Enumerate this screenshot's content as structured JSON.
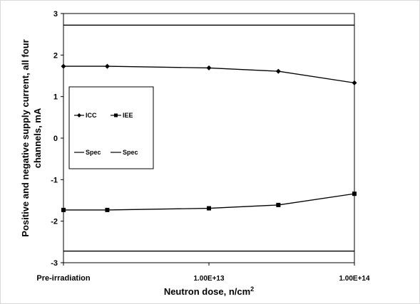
{
  "chart_data": {
    "type": "line",
    "title": "",
    "xlabel": "Neutron dose, n/cm",
    "xlabel_sup": "2",
    "ylabel_line1": "Positive and negative supply current, all four",
    "ylabel_line2": "channels, mA",
    "ylim": [
      -3,
      3
    ],
    "y_ticks": [
      "3",
      "2",
      "1",
      "0",
      "-1",
      "-2",
      "-3"
    ],
    "x_ticks": [
      "Pre-irradiation",
      "1.00E+13",
      "1.00E+14"
    ],
    "grid": false,
    "legend_position": "left-middle",
    "series": [
      {
        "name": "ICC",
        "marker": "diamond",
        "points": [
          [
            "Pre-irradiation",
            1.73
          ],
          [
            "2.00E+12",
            1.73
          ],
          [
            "1.00E+13",
            1.69
          ],
          [
            "3.00E+13",
            1.61
          ],
          [
            "1.00E+14",
            1.33
          ]
        ]
      },
      {
        "name": "IEE",
        "marker": "square",
        "points": [
          [
            "Pre-irradiation",
            -1.73
          ],
          [
            "2.00E+12",
            -1.73
          ],
          [
            "1.00E+13",
            -1.69
          ],
          [
            "3.00E+13",
            -1.61
          ],
          [
            "1.00E+14",
            -1.34
          ]
        ]
      },
      {
        "name": "Spec",
        "marker": "none",
        "points": [
          [
            "Pre-irradiation",
            2.72
          ],
          [
            "1.00E+14",
            2.72
          ]
        ]
      },
      {
        "name": "Spec",
        "marker": "none",
        "points": [
          [
            "Pre-irradiation",
            -2.72
          ],
          [
            "1.00E+14",
            -2.72
          ]
        ]
      }
    ]
  }
}
